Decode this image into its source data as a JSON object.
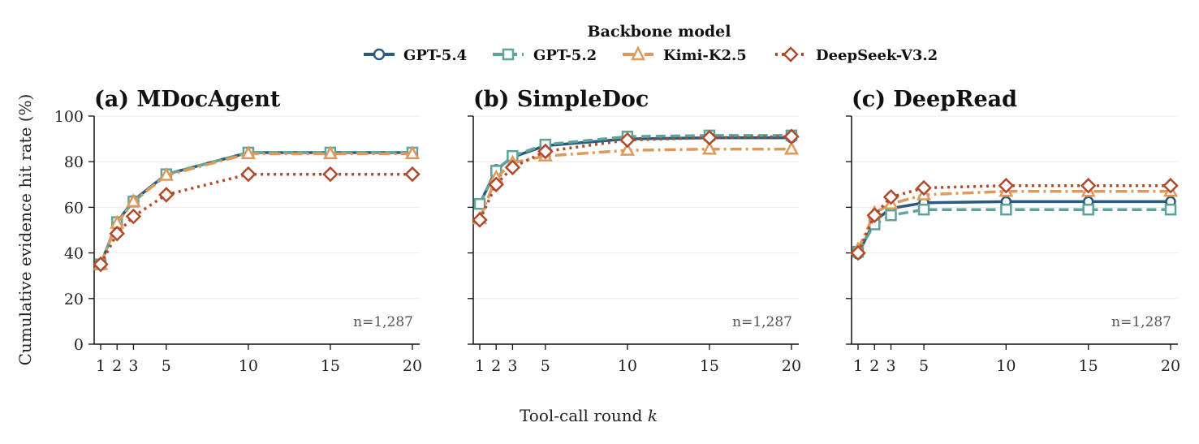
{
  "legend": {
    "title": "Backbone model",
    "items": [
      "GPT-5.4",
      "GPT-5.2",
      "Kimi-K2.5",
      "DeepSeek-V3.2"
    ]
  },
  "shared": {
    "ylabel": "Cumulative evidence hit rate (%)",
    "xlabel_main": "Tool-call round ",
    "xlabel_var": "k"
  },
  "series_styles": [
    {
      "name": "GPT-5.4",
      "color": "#2b5a80",
      "dash": "solid",
      "marker": "circle"
    },
    {
      "name": "GPT-5.2",
      "color": "#5fa39a",
      "dash": "dashed",
      "marker": "square"
    },
    {
      "name": "Kimi-K2.5",
      "color": "#de9a5c",
      "dash": "dashdot",
      "marker": "triangle"
    },
    {
      "name": "DeepSeek-V3.2",
      "color": "#b04a2c",
      "dash": "dotted",
      "marker": "diamond"
    }
  ],
  "chart_data": [
    {
      "type": "line",
      "title": "(a) MDocAgent",
      "annotation": "n=1,287",
      "x": [
        1,
        2,
        3,
        5,
        10,
        15,
        20
      ],
      "xticks": [
        "1",
        "2",
        "3",
        "5",
        "10",
        "15",
        "20"
      ],
      "yticks": [
        "0",
        "20",
        "40",
        "60",
        "80",
        "100"
      ],
      "ylim": [
        0,
        100
      ],
      "grid": "horizontal",
      "series": [
        {
          "name": "GPT-5.4",
          "values": [
            35,
            53.5,
            63,
            74.5,
            84,
            84,
            84
          ]
        },
        {
          "name": "GPT-5.2",
          "values": [
            35,
            53.5,
            62.5,
            74.5,
            84,
            84,
            84
          ]
        },
        {
          "name": "Kimi-K2.5",
          "values": [
            35,
            53,
            62.5,
            74,
            83.5,
            83.5,
            83.5
          ]
        },
        {
          "name": "DeepSeek-V3.2",
          "values": [
            35,
            48.5,
            56,
            65.5,
            74.5,
            74.5,
            74.5
          ]
        }
      ]
    },
    {
      "type": "line",
      "title": "(b) SimpleDoc",
      "annotation": "n=1,287",
      "x": [
        1,
        2,
        3,
        5,
        10,
        15,
        20
      ],
      "xticks": [
        "1",
        "2",
        "3",
        "5",
        "10",
        "15",
        "20"
      ],
      "yticks": [
        "0",
        "20",
        "40",
        "60",
        "80",
        "100"
      ],
      "ylim": [
        0,
        100
      ],
      "grid": "horizontal",
      "series": [
        {
          "name": "GPT-5.4",
          "values": [
            61.5,
            76.5,
            82,
            87,
            90,
            90.5,
            90.5
          ]
        },
        {
          "name": "GPT-5.2",
          "values": [
            61.5,
            76,
            82.5,
            87.5,
            91,
            91.5,
            91.5
          ]
        },
        {
          "name": "Kimi-K2.5",
          "values": [
            55,
            73,
            79.5,
            82.5,
            85,
            85.5,
            85.5
          ]
        },
        {
          "name": "DeepSeek-V3.2",
          "values": [
            54.5,
            70,
            77.5,
            84.5,
            89.5,
            90.5,
            91
          ]
        }
      ]
    },
    {
      "type": "line",
      "title": "(c) DeepRead",
      "annotation": "n=1,287",
      "x": [
        1,
        2,
        3,
        5,
        10,
        15,
        20
      ],
      "xticks": [
        "1",
        "2",
        "3",
        "5",
        "10",
        "15",
        "20"
      ],
      "yticks": [
        "0",
        "20",
        "40",
        "60",
        "80",
        "100"
      ],
      "ylim": [
        0,
        100
      ],
      "grid": "horizontal",
      "series": [
        {
          "name": "GPT-5.4",
          "values": [
            39.5,
            54,
            59.5,
            62,
            62.5,
            62.5,
            62.5
          ]
        },
        {
          "name": "GPT-5.2",
          "values": [
            40.5,
            52.5,
            56.5,
            59,
            59,
            59,
            59
          ]
        },
        {
          "name": "Kimi-K2.5",
          "values": [
            41.5,
            57.5,
            61.5,
            65.5,
            67,
            67,
            67
          ]
        },
        {
          "name": "DeepSeek-V3.2",
          "values": [
            40,
            56.5,
            64.5,
            68.5,
            69.5,
            69.5,
            69.5
          ]
        }
      ]
    }
  ]
}
